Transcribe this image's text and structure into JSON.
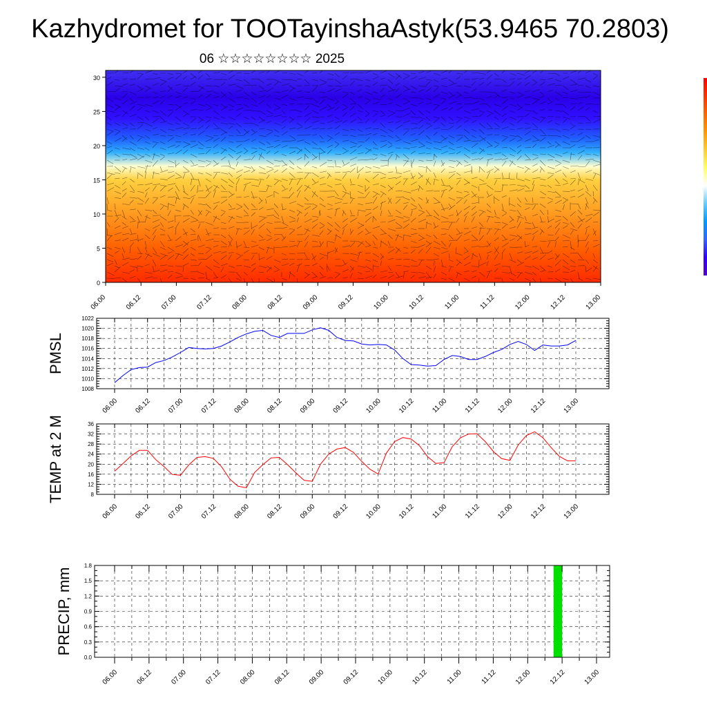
{
  "title": "Kazhydromet for TOOTayinshaAstyk(53.9465 70.2803)",
  "subtitle": "06 ☆☆☆☆☆☆☆☆ 2025",
  "colors": {
    "pmsl_line": "#0000ff",
    "temp_line": "#ff0000",
    "precip_bar": "#00e000",
    "grid": "#000000",
    "background": "#ffffff"
  },
  "chart_data": [
    {
      "id": "cross_section",
      "type": "heatmap",
      "xlabel": "",
      "ylabel": "",
      "x_tick_labels": [
        "06.00",
        "06.12",
        "07.00",
        "07.12",
        "08.00",
        "08.12",
        "09.00",
        "09.12",
        "10.00",
        "10.12",
        "11.00",
        "11.12",
        "12.00",
        "12.12",
        "13.00"
      ],
      "y_ticks": [
        0,
        5,
        10,
        15,
        20,
        25,
        30
      ],
      "ylim": [
        0,
        31
      ],
      "colormap": [
        "#ff0000",
        "#ff3300",
        "#ff6600",
        "#ff9900",
        "#ffcc33",
        "#ffff66",
        "#ffffff",
        "#66ccff",
        "#0099ff",
        "#3366ff",
        "#3300ff",
        "#5500cc"
      ],
      "overlay": "wind barbs / streamlines",
      "bands": [
        {
          "level": 0,
          "color": "#ff2a00"
        },
        {
          "level": 5,
          "color": "#ff6000"
        },
        {
          "level": 10,
          "color": "#ff9a20"
        },
        {
          "level": 15,
          "color": "#ffd040"
        },
        {
          "level": 17,
          "color": "#ffffd0"
        },
        {
          "level": 19,
          "color": "#30b0ff"
        },
        {
          "level": 21,
          "color": "#2060ff"
        },
        {
          "level": 24,
          "color": "#3010ff"
        },
        {
          "level": 27,
          "color": "#2a00e8"
        },
        {
          "level": 31,
          "color": "#4030f0"
        }
      ]
    },
    {
      "id": "pmsl",
      "type": "line",
      "ylabel": "PMSL",
      "xlabel": "",
      "ylim": [
        1008,
        1022
      ],
      "y_ticks": [
        1008,
        1010,
        1012,
        1014,
        1016,
        1018,
        1020,
        1022
      ],
      "x_tick_labels": [
        "06.00",
        "06.12",
        "07.00",
        "07.12",
        "08.00",
        "08.12",
        "09.00",
        "09.12",
        "10.00",
        "10.12",
        "11.00",
        "11.12",
        "12.00",
        "12.12",
        "13.00"
      ],
      "x": [
        0,
        3,
        6,
        9,
        12,
        15,
        18,
        21,
        24,
        27,
        30,
        33,
        36,
        39,
        42,
        45,
        48,
        51,
        54,
        57,
        60,
        63,
        66,
        69,
        72,
        75,
        78,
        81,
        84,
        87,
        90,
        93,
        96,
        99,
        102,
        105,
        108,
        111,
        114,
        117,
        120,
        123,
        126,
        129,
        132,
        135,
        138,
        141,
        144,
        147,
        150,
        153,
        156,
        159,
        162,
        165,
        168
      ],
      "values": [
        1009.2,
        1010.6,
        1011.8,
        1012.2,
        1012.3,
        1013.2,
        1013.6,
        1014.3,
        1015.2,
        1016.2,
        1016.0,
        1015.9,
        1016.0,
        1016.5,
        1017.3,
        1018.2,
        1018.9,
        1019.4,
        1019.6,
        1018.6,
        1018.2,
        1019.0,
        1019.0,
        1019.0,
        1019.7,
        1020.1,
        1019.6,
        1018.2,
        1017.6,
        1017.5,
        1016.9,
        1016.7,
        1016.8,
        1016.7,
        1015.7,
        1014.0,
        1012.8,
        1012.7,
        1012.5,
        1012.6,
        1013.8,
        1014.6,
        1014.4,
        1013.8,
        1013.8,
        1014.4,
        1015.2,
        1015.8,
        1016.8,
        1017.4,
        1016.8,
        1015.6,
        1016.7,
        1016.5,
        1016.5,
        1016.7,
        1017.6
      ]
    },
    {
      "id": "temp2m",
      "type": "line",
      "ylabel": "TEMP at 2 M",
      "xlabel": "",
      "ylim": [
        8,
        36
      ],
      "y_ticks": [
        8,
        12,
        16,
        20,
        24,
        28,
        32,
        36
      ],
      "x_tick_labels": [
        "06.00",
        "06.12",
        "07.00",
        "07.12",
        "08.00",
        "08.12",
        "09.00",
        "09.12",
        "10.00",
        "10.12",
        "11.00",
        "11.12",
        "12.00",
        "12.12",
        "13.00"
      ],
      "x": [
        0,
        3,
        6,
        9,
        12,
        15,
        18,
        21,
        24,
        27,
        30,
        33,
        36,
        39,
        42,
        45,
        48,
        51,
        54,
        57,
        60,
        63,
        66,
        69,
        72,
        75,
        78,
        81,
        84,
        87,
        90,
        93,
        96,
        99,
        102,
        105,
        108,
        111,
        114,
        117,
        120,
        123,
        126,
        129,
        132,
        135,
        138,
        141,
        144,
        147,
        150,
        153,
        156,
        159,
        162,
        165,
        168
      ],
      "values": [
        17.2,
        20.2,
        23.3,
        25.5,
        25.5,
        21.8,
        19.0,
        15.9,
        15.6,
        19.7,
        22.7,
        23.0,
        22.3,
        18.9,
        14.0,
        11.2,
        10.6,
        16.7,
        19.8,
        22.5,
        22.7,
        19.8,
        16.6,
        13.6,
        13.2,
        20.0,
        24.0,
        26.0,
        26.6,
        24.7,
        21.1,
        18.0,
        16.1,
        24.4,
        29.0,
        30.6,
        30.0,
        27.4,
        23.0,
        20.3,
        20.6,
        27.0,
        30.5,
        32.0,
        32.1,
        29.0,
        25.0,
        22.2,
        21.5,
        27.6,
        31.4,
        32.9,
        30.5,
        26.6,
        23.1,
        21.3,
        21.3
      ]
    },
    {
      "id": "precip",
      "type": "bar",
      "ylabel": "PRECIP, mm",
      "xlabel": "",
      "ylim": [
        0,
        1.8
      ],
      "y_ticks": [
        "0.0",
        "0.3",
        "0.6",
        "0.9",
        "1.2",
        "1.5",
        "1.8"
      ],
      "x_tick_labels": [
        "06.00",
        "06.12",
        "07.00",
        "07.12",
        "08.00",
        "08.12",
        "09.00",
        "09.12",
        "10.00",
        "10.12",
        "11.00",
        "11.12",
        "12.00",
        "12.12",
        "13.00"
      ],
      "bars": [
        {
          "x_start": 153,
          "x_end": 156,
          "value": 1.8
        }
      ]
    }
  ]
}
